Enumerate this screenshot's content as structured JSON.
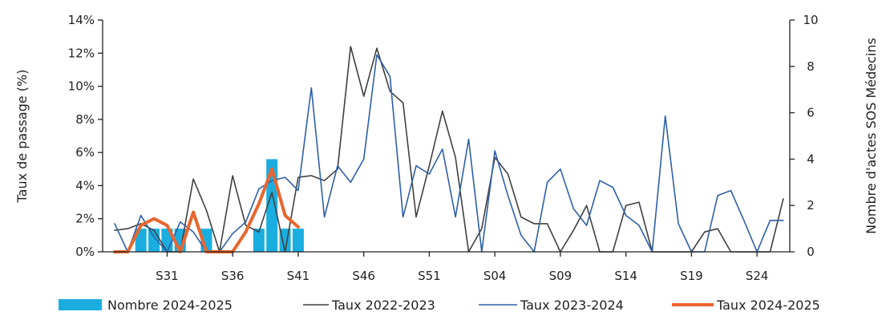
{
  "chart_data": {
    "type": "bar+line",
    "title": "",
    "weeks": [
      "S27",
      "S28",
      "S29",
      "S30",
      "S31",
      "S32",
      "S33",
      "S34",
      "S35",
      "S36",
      "S37",
      "S38",
      "S39",
      "S40",
      "S41",
      "S42",
      "S43",
      "S44",
      "S45",
      "S46",
      "S47",
      "S48",
      "S49",
      "S50",
      "S51",
      "S52",
      "S01",
      "S02",
      "S03",
      "S04",
      "S05",
      "S06",
      "S07",
      "S08",
      "S09",
      "S10",
      "S11",
      "S12",
      "S13",
      "S14",
      "S15",
      "S16",
      "S17",
      "S18",
      "S19",
      "S20",
      "S21",
      "S22",
      "S23",
      "S24",
      "S25",
      "S26"
    ],
    "x_tick_labels": [
      "S31",
      "S36",
      "S41",
      "S46",
      "S51",
      "S04",
      "S09",
      "S14",
      "S19",
      "S24"
    ],
    "x_tick_indices": [
      4,
      9,
      14,
      19,
      24,
      29,
      34,
      39,
      44,
      49
    ],
    "y_left": {
      "label": "Taux de passage (%)",
      "min": 0,
      "max": 14,
      "ticks": [
        "0%",
        "2%",
        "4%",
        "6%",
        "8%",
        "10%",
        "12%",
        "14%"
      ]
    },
    "y_right": {
      "label": "Nombre d'actes SOS Médecins",
      "min": 0,
      "max": 10,
      "ticks": [
        "0",
        "2",
        "4",
        "6",
        "8",
        "10"
      ]
    },
    "legend": [
      {
        "label": "Nombre 2024-2025",
        "color": "#1aaee0",
        "kind": "bar"
      },
      {
        "label": "Taux 2022-2023",
        "color": "#404040",
        "kind": "line"
      },
      {
        "label": "Taux 2023-2024",
        "color": "#2e5fa8",
        "kind": "line"
      },
      {
        "label": "Taux 2024-2025",
        "color": "#e8662f",
        "kind": "thick-line"
      }
    ],
    "series": [
      {
        "name": "Nombre 2024-2025",
        "axis": "right",
        "color": "#1aaee0",
        "values": [
          null,
          null,
          1,
          1,
          1,
          1,
          0,
          1,
          0,
          0,
          0,
          1,
          4,
          1,
          1,
          null,
          null,
          null,
          null,
          null,
          null,
          null,
          null,
          null,
          null,
          null,
          null,
          null,
          null,
          null,
          null,
          null,
          null,
          null,
          null,
          null,
          null,
          null,
          null,
          null,
          null,
          null,
          null,
          null,
          null,
          null,
          null,
          null,
          null,
          null,
          null,
          null
        ]
      },
      {
        "name": "Taux 2022-2023",
        "axis": "left",
        "color": "#404040",
        "values": [
          1.3,
          1.4,
          1.7,
          1.3,
          0.0,
          0.0,
          4.4,
          2.5,
          0.0,
          4.6,
          1.6,
          1.2,
          3.6,
          0.0,
          4.5,
          4.6,
          4.3,
          5.0,
          12.4,
          9.4,
          12.3,
          9.7,
          9.0,
          2.1,
          5.2,
          8.5,
          5.7,
          0.0,
          1.4,
          5.7,
          4.7,
          2.1,
          1.7,
          1.7,
          0.0,
          1.3,
          2.8,
          0.0,
          0.0,
          2.8,
          3.0,
          0.0,
          0.0,
          0.0,
          0.0,
          1.2,
          1.4,
          0.0,
          0.0,
          0.0,
          0.0,
          3.2
        ]
      },
      {
        "name": "Taux 2023-2024",
        "axis": "left",
        "color": "#2e5fa8",
        "values": [
          1.7,
          0.0,
          2.2,
          0.9,
          0.0,
          1.8,
          1.2,
          0.0,
          0.0,
          1.1,
          1.8,
          3.8,
          4.3,
          4.5,
          3.7,
          9.9,
          2.1,
          5.2,
          4.2,
          5.6,
          11.9,
          10.6,
          2.1,
          5.2,
          4.7,
          6.2,
          2.1,
          6.8,
          0.0,
          6.1,
          3.4,
          1.0,
          0.0,
          4.2,
          5.0,
          2.6,
          1.6,
          4.3,
          3.9,
          2.2,
          1.6,
          0.0,
          8.2,
          1.7,
          0.0,
          0.0,
          3.4,
          3.7,
          1.9,
          0.0,
          1.9,
          1.9
        ]
      },
      {
        "name": "Taux 2024-2025",
        "axis": "left",
        "color": "#e8662f",
        "values": [
          0.0,
          0.0,
          1.6,
          2.0,
          1.6,
          0.0,
          2.4,
          0.0,
          0.0,
          0.0,
          1.2,
          2.9,
          5.0,
          2.2,
          1.5,
          null,
          null,
          null,
          null,
          null,
          null,
          null,
          null,
          null,
          null,
          null,
          null,
          null,
          null,
          null,
          null,
          null,
          null,
          null,
          null,
          null,
          null,
          null,
          null,
          null,
          null,
          null,
          null,
          null,
          null,
          null,
          null,
          null,
          null,
          null,
          null,
          null
        ]
      }
    ]
  }
}
